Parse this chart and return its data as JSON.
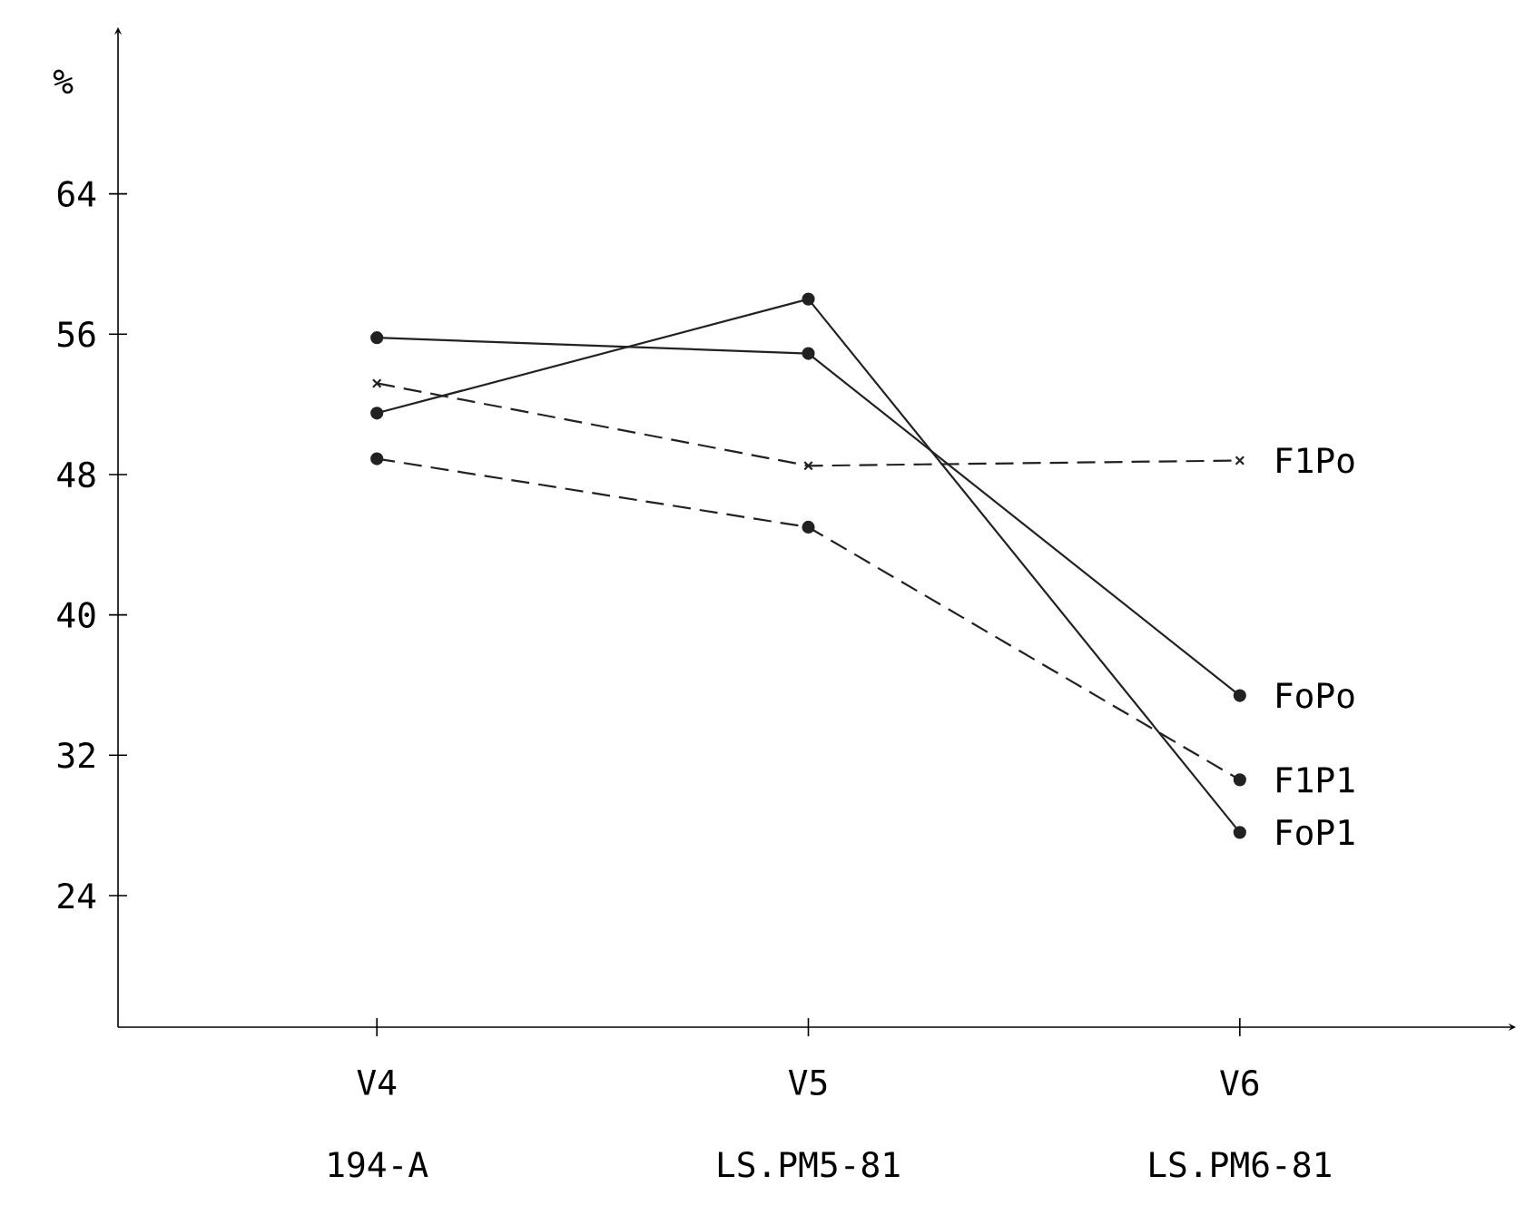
{
  "chart_data": {
    "type": "line",
    "ylabel": "%",
    "categories": [
      "V4",
      "V5",
      "V6"
    ],
    "annotations": [
      "194-A",
      "LS.PM5-81",
      "LS.PM6-81"
    ],
    "series": [
      {
        "name": "F1Po",
        "color": "#222222",
        "values": [
          53.2,
          48.5,
          48.8
        ],
        "marker": "cross",
        "line_style": "dashed"
      },
      {
        "name": "FoPo",
        "color": "#222222",
        "values": [
          55.8,
          54.9,
          35.4
        ],
        "marker": "circle",
        "line_style": "solid"
      },
      {
        "name": "F1P1",
        "color": "#222222",
        "values": [
          48.9,
          45.0,
          30.6
        ],
        "marker": "circle",
        "line_style": "dashed"
      },
      {
        "name": "FoP1",
        "color": "#222222",
        "values": [
          51.5,
          58.0,
          27.6
        ],
        "marker": "circle",
        "line_style": "solid"
      }
    ],
    "ylim": [
      16.5,
      73.5
    ],
    "yticks": [
      24,
      32,
      40,
      48,
      56,
      64
    ],
    "grid": false,
    "legend": false
  }
}
